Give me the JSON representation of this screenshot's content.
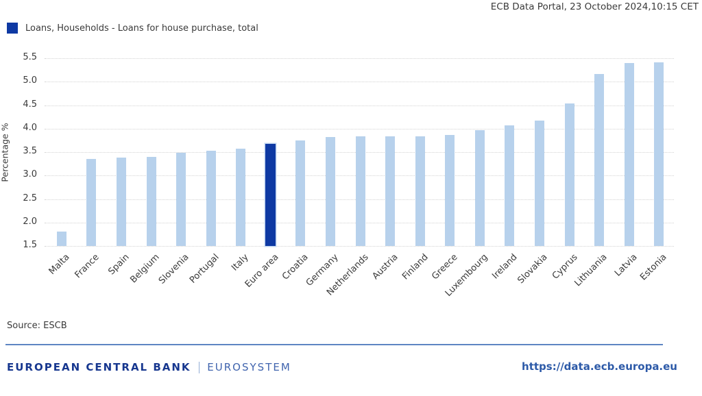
{
  "header": {
    "portal_info": "ECB Data Portal, 23 October 2024,10:15 CET"
  },
  "legend": {
    "label": "Loans, Households - Loans for house purchase, total",
    "color": "#0e39a3"
  },
  "chart_data": {
    "type": "bar",
    "title": "",
    "xlabel": "",
    "ylabel": "Percentage %",
    "ylim": [
      1.5,
      5.5
    ],
    "ytick_step": 0.5,
    "grid": "horizontal-dotted",
    "legend_position": "top-left",
    "categories": [
      "Malta",
      "France",
      "Spain",
      "Belgium",
      "Slovenia",
      "Portugal",
      "Italy",
      "Euro area",
      "Croatia",
      "Germany",
      "Netherlands",
      "Austria",
      "Finland",
      "Greece",
      "Luxembourg",
      "Ireland",
      "Slovakia",
      "Cyprus",
      "Lithuania",
      "Latvia",
      "Estonia"
    ],
    "values": [
      1.8,
      3.36,
      3.38,
      3.4,
      3.49,
      3.53,
      3.58,
      3.68,
      3.75,
      3.82,
      3.83,
      3.84,
      3.84,
      3.86,
      3.97,
      4.07,
      4.17,
      4.54,
      5.16,
      5.4,
      5.41
    ],
    "series_name": "Loans, Households - Loans for house purchase, total",
    "highlight_category": "Euro area",
    "bar_color": "#b7d1ec",
    "highlight_color": "#0e39a3"
  },
  "footer": {
    "source": "Source: ESCB",
    "brand": "EUROPEAN CENTRAL BANK",
    "brand_separator": "|",
    "brand_sub": "EUROSYSTEM",
    "url": "https://data.ecb.europa.eu"
  }
}
